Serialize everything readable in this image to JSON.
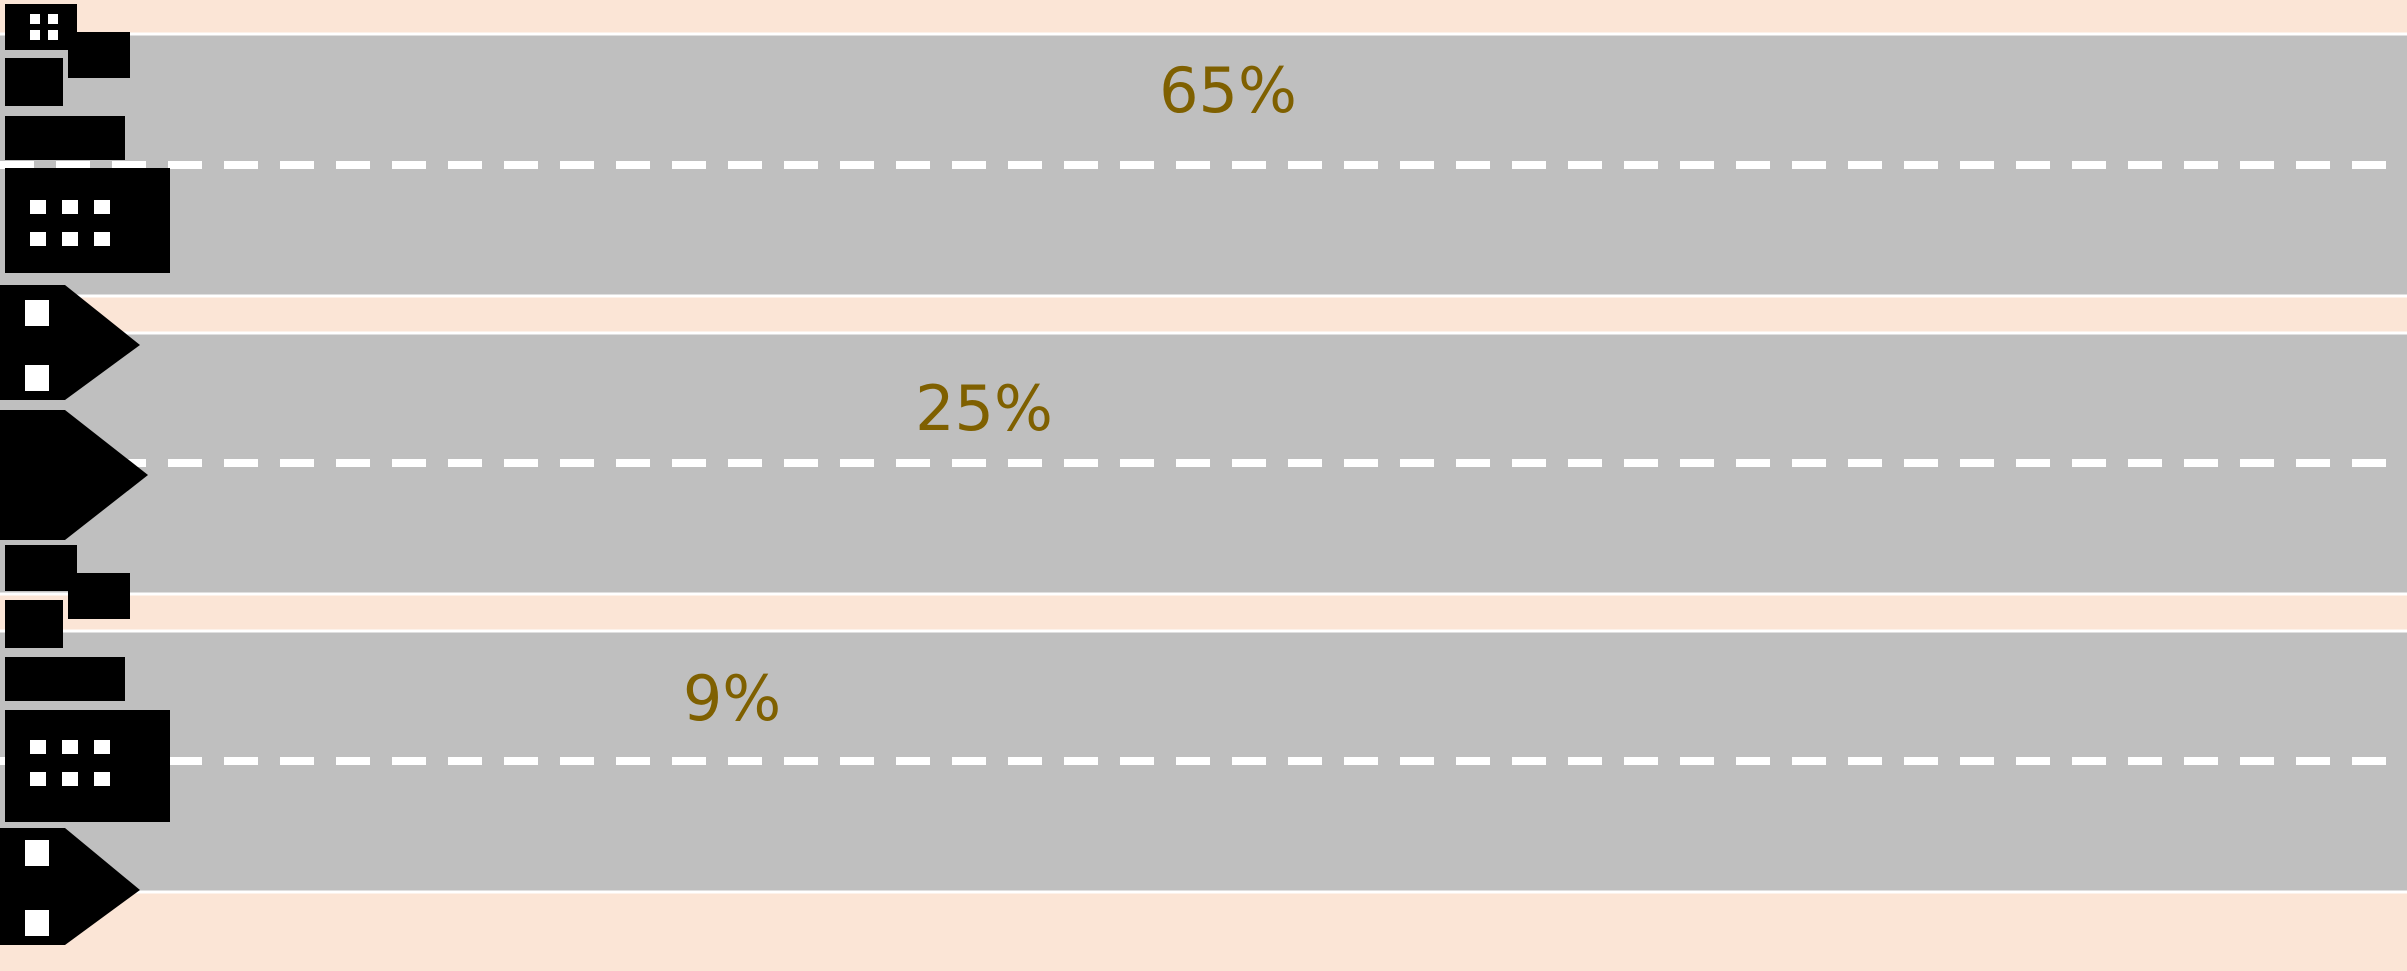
{
  "chart_data": {
    "type": "pictograph",
    "values": [
      65,
      25,
      9
    ],
    "value_labels": [
      "65%",
      "25%",
      "9%"
    ],
    "label_color": "#7f6000",
    "icon_color": "#000000"
  }
}
